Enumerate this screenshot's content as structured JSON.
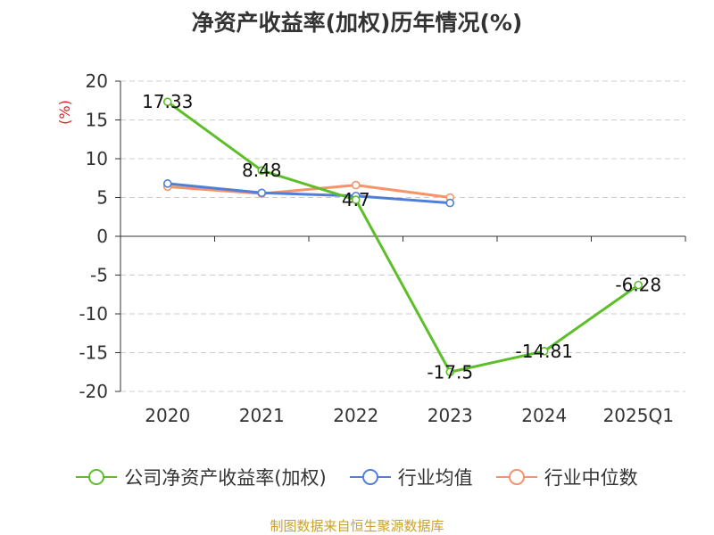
{
  "chart_data": {
    "type": "line",
    "title": "净资产收益率(加权)历年情况(%)",
    "ylabel": "(%)",
    "categories": [
      "2020",
      "2021",
      "2022",
      "2023",
      "2024",
      "2025Q1"
    ],
    "ylim": [
      -20,
      20
    ],
    "yticks": [
      "20",
      "15",
      "10",
      "5",
      "0",
      "-5",
      "-10",
      "-15",
      "-20"
    ],
    "grid": true,
    "legend_position": "bottom",
    "series": [
      {
        "name": "公司净资产收益率(加权)",
        "color": "#5cbf2a",
        "values": [
          17.33,
          8.48,
          4.7,
          -17.5,
          -14.81,
          -6.28
        ],
        "labels": [
          "17.33",
          "8.48",
          "4.7",
          "-17.5",
          "-14.81",
          "-6.28"
        ]
      },
      {
        "name": "行业均值",
        "color": "#4f7fd8",
        "values": [
          6.8,
          5.6,
          5.2,
          4.3,
          null,
          null
        ]
      },
      {
        "name": "行业中位数",
        "color": "#f5936a",
        "values": [
          6.4,
          5.5,
          6.6,
          5.0,
          null,
          null
        ]
      }
    ]
  },
  "footer": {
    "source": "制图数据来自恒生聚源数据库"
  }
}
